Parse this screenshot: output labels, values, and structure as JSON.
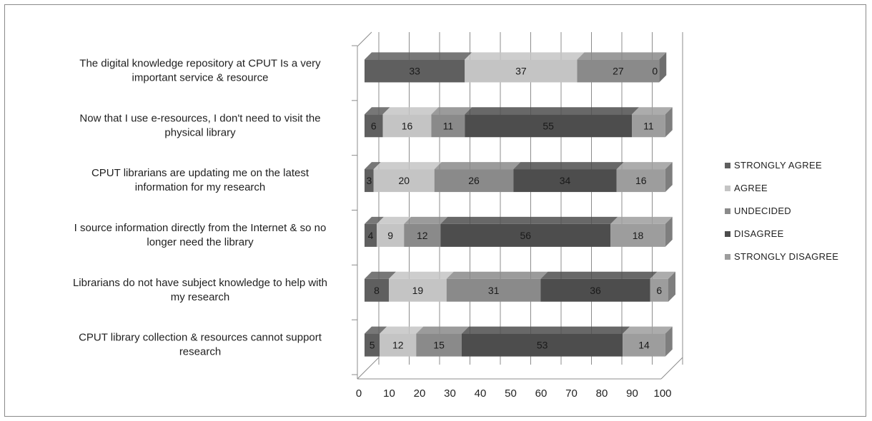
{
  "chart_data": {
    "type": "bar",
    "orientation": "horizontal",
    "stacked": true,
    "three_d": true,
    "categories": [
      "The digital knowledge repository at CPUT Is a very important service & resource",
      "Now that I use e-resources,  I don't need to visit the physical library",
      "CPUT librarians are updating me on the latest information for my research",
      "I source information directly from the Internet & so no longer need the library",
      "Librarians do not have subject knowledge to help with my research",
      "CPUT library collection & resources cannot support research"
    ],
    "category_lines": [
      [
        "The digital knowledge repository at CPUT Is a very",
        "important service & resource"
      ],
      [
        "Now that I use e-resources,  I don't need to visit the",
        "physical library"
      ],
      [
        "CPUT librarians are updating me on the latest",
        "information for my research"
      ],
      [
        "I source information directly from the Internet & so no",
        "longer need the library"
      ],
      [
        "Librarians do not have subject knowledge to help with",
        "my research"
      ],
      [
        "CPUT library collection & resources cannot support",
        "research"
      ]
    ],
    "series": [
      {
        "name": "STRONGLY AGREE",
        "values": [
          33,
          6,
          3,
          4,
          8,
          5
        ],
        "color": "#5f5f5f"
      },
      {
        "name": "AGREE",
        "values": [
          37,
          16,
          20,
          9,
          19,
          12
        ],
        "color": "#c4c4c4"
      },
      {
        "name": "UNDECIDED",
        "values": [
          27,
          11,
          26,
          12,
          31,
          15
        ],
        "color": "#8a8a8a"
      },
      {
        "name": "DISAGREE",
        "values": [
          0,
          55,
          34,
          56,
          36,
          53
        ],
        "color": "#4d4d4d"
      },
      {
        "name": "STRONGLY DISAGREE",
        "values": [
          0,
          11,
          16,
          18,
          6,
          14
        ],
        "color": "#9d9d9d"
      }
    ],
    "data_labels": [
      [
        "33",
        "37",
        "27",
        "0",
        ""
      ],
      [
        "6",
        "16",
        "11",
        "55",
        "11"
      ],
      [
        "3",
        "20",
        "26",
        "34",
        "16"
      ],
      [
        "4",
        "9",
        "12",
        "56",
        "18"
      ],
      [
        "8",
        "19",
        "31",
        "36",
        "6"
      ],
      [
        "5",
        "12",
        "15",
        "53",
        "14"
      ]
    ],
    "x_ticks": [
      "0",
      "10",
      "20",
      "30",
      "40",
      "50",
      "60",
      "70",
      "80",
      "90",
      "100"
    ],
    "xlim": [
      0,
      100
    ],
    "grid": true,
    "legend_position": "right"
  }
}
